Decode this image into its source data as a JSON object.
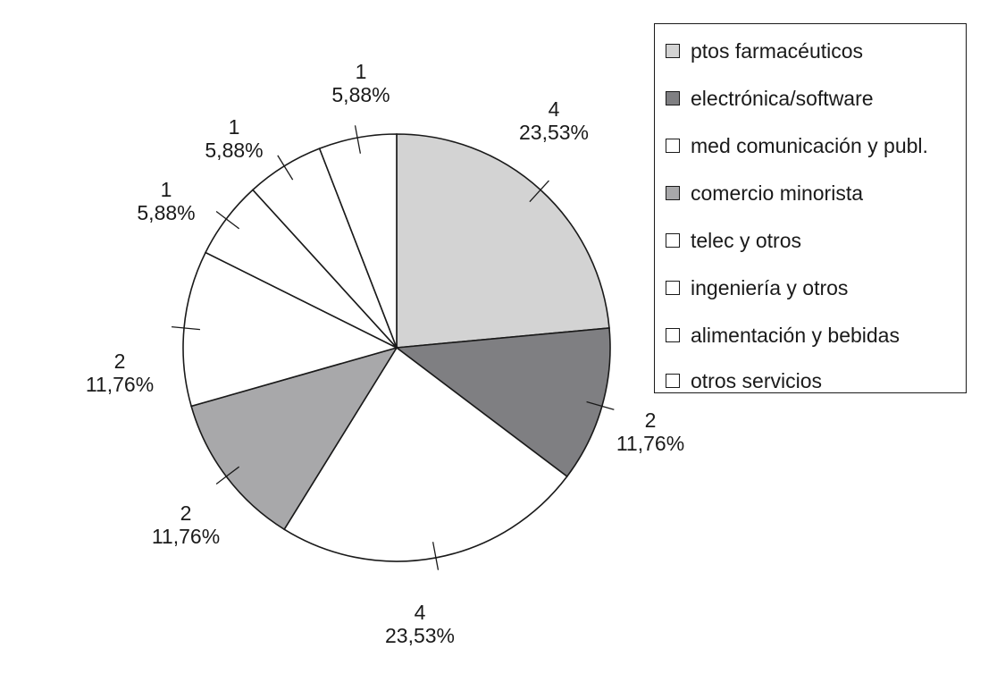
{
  "chart_data": {
    "type": "pie",
    "title": "",
    "legend_position": "top-right",
    "slices": [
      {
        "name": "ptos farmacéuticos",
        "value": 4,
        "label_value": "4",
        "label_percent": "23,53%",
        "color": "#d3d3d3"
      },
      {
        "name": "electrónica/software",
        "value": 2,
        "label_value": "2",
        "label_percent": "11,76%",
        "color": "#7f7f82"
      },
      {
        "name": "med comunicación y publ.",
        "value": 4,
        "label_value": "4",
        "label_percent": "23,53%",
        "color": "#ffffff"
      },
      {
        "name": "comercio minorista",
        "value": 2,
        "label_value": "2",
        "label_percent": "11,76%",
        "color": "#a8a8aa"
      },
      {
        "name": "telec y otros",
        "value": 2,
        "label_value": "2",
        "label_percent": "11,76%",
        "color": "#ffffff"
      },
      {
        "name": "ingeniería y otros",
        "value": 1,
        "label_value": "1",
        "label_percent": "5,88%",
        "color": "#ffffff"
      },
      {
        "name": "alimentación y bebidas",
        "value": 1,
        "label_value": "1",
        "label_percent": "5,88%",
        "color": "#ffffff"
      },
      {
        "name": "otros servicios",
        "value": 1,
        "label_value": "1",
        "label_percent": "5,88%",
        "color": "#ffffff"
      }
    ]
  }
}
